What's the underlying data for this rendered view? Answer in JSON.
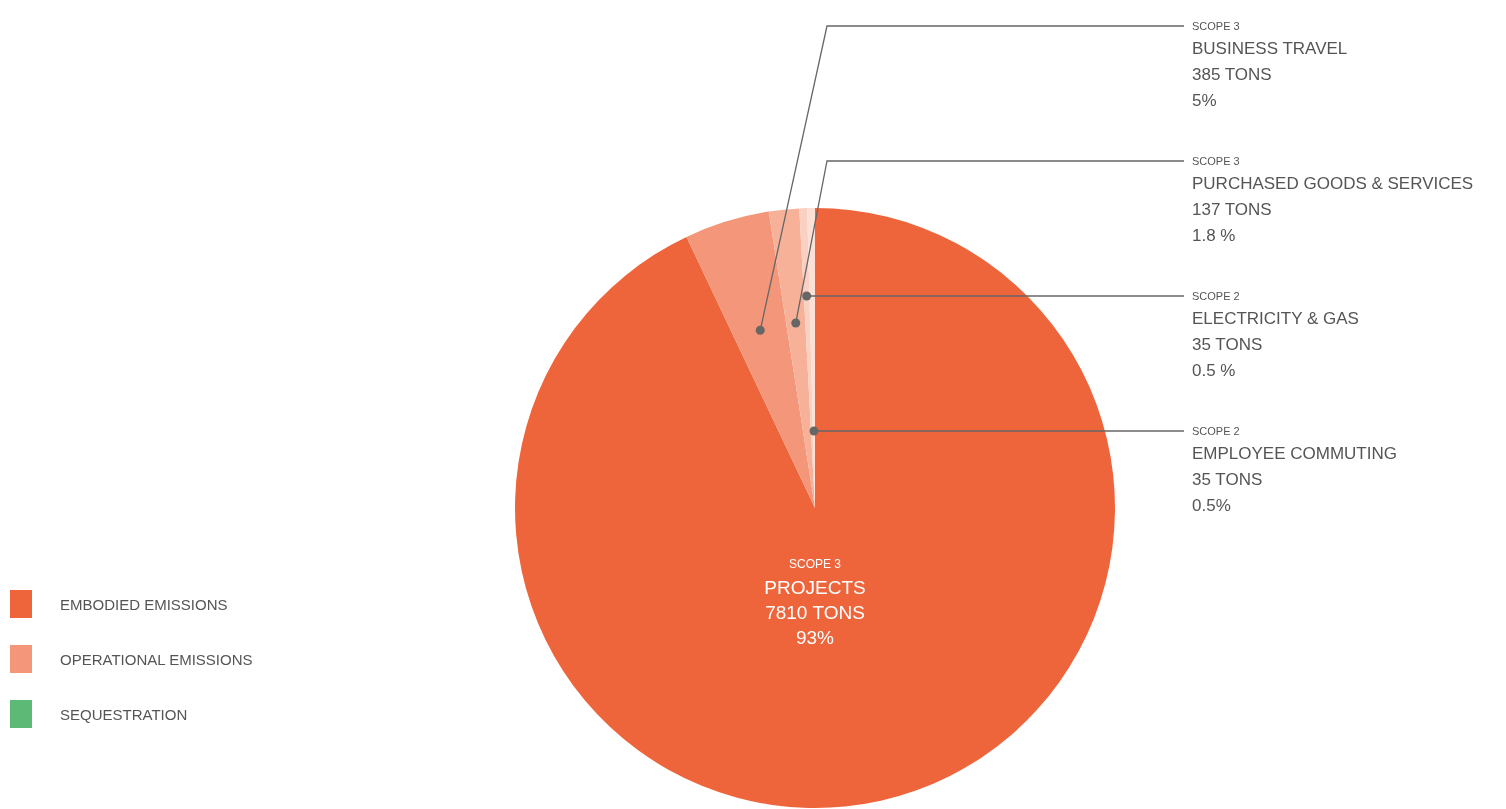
{
  "chart_data": {
    "type": "pie",
    "categories": [
      "PROJECTS",
      "BUSINESS TRAVEL",
      "PURCHASED GOODS & SERVICES",
      "ELECTRICITY & GAS",
      "EMPLOYEE COMMUTING"
    ],
    "values": [
      7810,
      385,
      137,
      35,
      35
    ],
    "colors": [
      "#ef653b",
      "#f39679",
      "#f6b198",
      "#f9d0c1",
      "#fbe0d6"
    ],
    "value_labels": [
      "7810 TONS",
      "385 TONS",
      "137 TONS",
      "35 TONS",
      "35 TONS"
    ],
    "annotations": [
      {
        "text": "SCOPE 3",
        "x": "PROJECTS"
      },
      {
        "text": "93%",
        "x": "PROJECTS"
      },
      {
        "text": "SCOPE 3",
        "x": "BUSINESS TRAVEL"
      },
      {
        "text": "5%",
        "x": "BUSINESS TRAVEL"
      },
      {
        "text": "SCOPE 3",
        "x": "PURCHASED GOODS & SERVICES"
      },
      {
        "text": "1.8 %",
        "x": "PURCHASED GOODS & SERVICES"
      },
      {
        "text": "SCOPE 2",
        "x": "ELECTRICITY & GAS"
      },
      {
        "text": "0.5 %",
        "x": "ELECTRICITY & GAS"
      },
      {
        "text": "SCOPE 2",
        "x": "EMPLOYEE COMMUTING"
      },
      {
        "text": "0.5%",
        "x": "EMPLOYEE COMMUTING"
      },
      "EMBODIED EMISSIONS",
      "OPERATIONAL EMISSIONS",
      "SEQUESTRATION"
    ]
  }
}
